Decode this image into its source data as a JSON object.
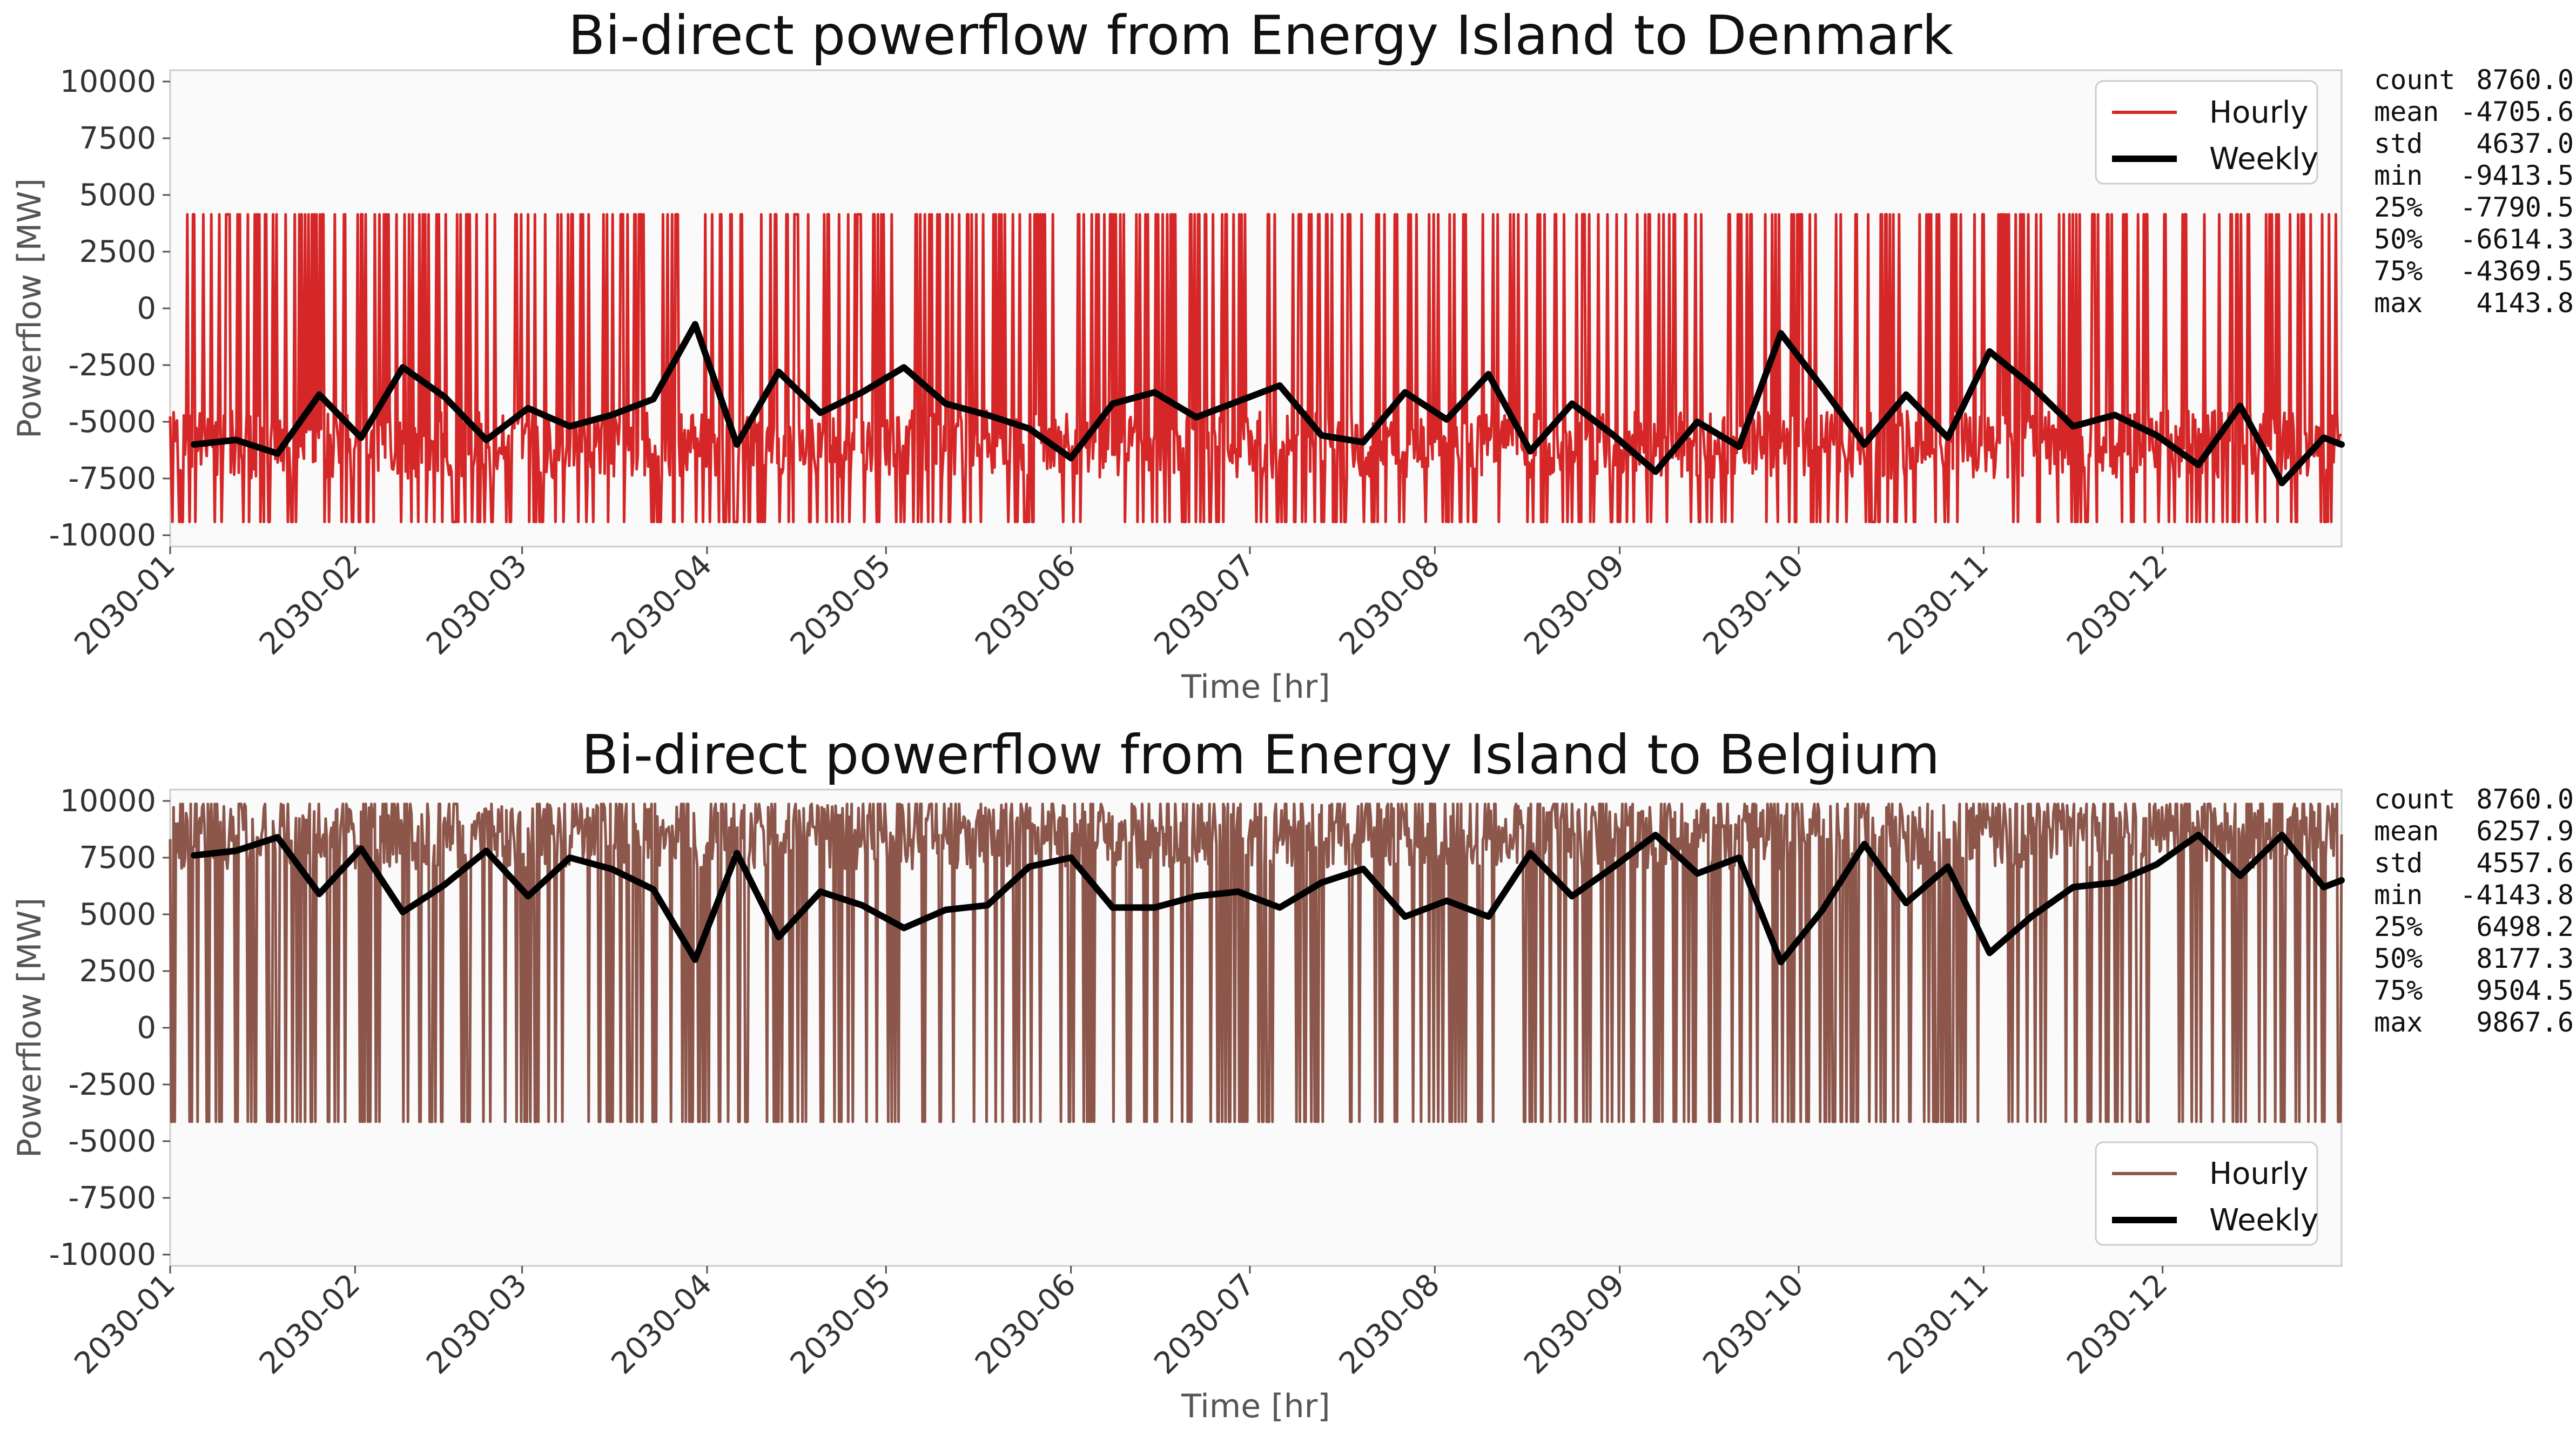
{
  "chart_data": [
    {
      "type": "line",
      "title": "Bi-direct powerflow from Energy Island to Denmark",
      "xlabel": "Time [hr]",
      "ylabel": "Powerflow [MW]",
      "ylim": [
        -10500,
        10500
      ],
      "yticks": [
        "10000",
        "7500",
        "5000",
        "2500",
        "0",
        "-2500",
        "-5000",
        "-7500",
        "-10000"
      ],
      "ytick_values": [
        10000,
        7500,
        5000,
        2500,
        0,
        -2500,
        -5000,
        -7500,
        -10000
      ],
      "xticks": [
        "2030-01",
        "2030-02",
        "2030-03",
        "2030-04",
        "2030-05",
        "2030-06",
        "2030-07",
        "2030-08",
        "2030-09",
        "2030-10",
        "2030-11",
        "2030-12"
      ],
      "xtick_days": [
        0,
        31,
        59,
        90,
        120,
        151,
        181,
        212,
        243,
        273,
        304,
        334
      ],
      "xlim_days": [
        0,
        364
      ],
      "legend": {
        "position": "top-right",
        "entries": [
          "Hourly",
          "Weekly"
        ]
      },
      "series": [
        {
          "name": "Hourly",
          "color": "#d62728",
          "description": "hourly values oscillate between about -9400 and 4140 MW",
          "min": -9413.5,
          "max": 4143.8,
          "typical_low": -7500,
          "typical_high": -4500,
          "seed": 7,
          "high_prob": 0.2
        },
        {
          "name": "Weekly",
          "color": "#000000",
          "x_days": [
            4,
            11,
            18,
            25,
            32,
            39,
            46,
            53,
            60,
            67,
            74,
            81,
            88,
            95,
            102,
            109,
            116,
            123,
            130,
            137,
            144,
            151,
            158,
            165,
            172,
            179,
            186,
            193,
            200,
            207,
            214,
            221,
            228,
            235,
            242,
            249,
            256,
            263,
            270,
            277,
            284,
            291,
            298,
            305,
            312,
            319,
            326,
            333,
            340,
            347,
            354,
            361,
            364
          ],
          "values": [
            -6000,
            -5800,
            -6400,
            -3800,
            -5700,
            -2600,
            -3900,
            -5800,
            -4400,
            -5200,
            -4700,
            -4000,
            -700,
            -6000,
            -2800,
            -4600,
            -3700,
            -2600,
            -4200,
            -4700,
            -5300,
            -6600,
            -4200,
            -3700,
            -4800,
            -4100,
            -3400,
            -5600,
            -5900,
            -3700,
            -4900,
            -2900,
            -6300,
            -4200,
            -5600,
            -7200,
            -5000,
            -6100,
            -1100,
            -3500,
            -6000,
            -3800,
            -5700,
            -1900,
            -3400,
            -5200,
            -4700,
            -5600,
            -6900,
            -4300,
            -7700,
            -5700,
            -6000
          ]
        }
      ],
      "stats": {
        "labels": [
          "count",
          "mean",
          "std",
          "min",
          "25%",
          "50%",
          "75%",
          "max"
        ],
        "values": [
          "8760.0",
          "-4705.6",
          "4637.0",
          "-9413.5",
          "-7790.5",
          "-6614.3",
          "-4369.5",
          "4143.8"
        ]
      }
    },
    {
      "type": "line",
      "title": "Bi-direct powerflow from Energy Island to Belgium",
      "xlabel": "Time [hr]",
      "ylabel": "Powerflow [MW]",
      "ylim": [
        -10500,
        10500
      ],
      "yticks": [
        "10000",
        "7500",
        "5000",
        "2500",
        "0",
        "-2500",
        "-5000",
        "-7500",
        "-10000"
      ],
      "ytick_values": [
        10000,
        7500,
        5000,
        2500,
        0,
        -2500,
        -5000,
        -7500,
        -10000
      ],
      "xticks": [
        "2030-01",
        "2030-02",
        "2030-03",
        "2030-04",
        "2030-05",
        "2030-06",
        "2030-07",
        "2030-08",
        "2030-09",
        "2030-10",
        "2030-11",
        "2030-12"
      ],
      "xtick_days": [
        0,
        31,
        59,
        90,
        120,
        151,
        181,
        212,
        243,
        273,
        304,
        334
      ],
      "xlim_days": [
        0,
        364
      ],
      "legend": {
        "position": "bottom-right",
        "entries": [
          "Hourly",
          "Weekly"
        ]
      },
      "series": [
        {
          "name": "Hourly",
          "color": "#8c564b",
          "description": "hourly values oscillate between about -4140 and 9870 MW",
          "min": -4143.8,
          "max": 9867.6,
          "typical_low": 7000,
          "typical_high": 9867.6,
          "seed": 13,
          "high_prob": 0.2
        },
        {
          "name": "Weekly",
          "color": "#000000",
          "x_days": [
            4,
            11,
            18,
            25,
            32,
            39,
            46,
            53,
            60,
            67,
            74,
            81,
            88,
            95,
            102,
            109,
            116,
            123,
            130,
            137,
            144,
            151,
            158,
            165,
            172,
            179,
            186,
            193,
            200,
            207,
            214,
            221,
            228,
            235,
            242,
            249,
            256,
            263,
            270,
            277,
            284,
            291,
            298,
            305,
            312,
            319,
            326,
            333,
            340,
            347,
            354,
            361,
            364
          ],
          "values": [
            7600,
            7800,
            8400,
            5900,
            7900,
            5100,
            6300,
            7800,
            5800,
            7500,
            7000,
            6100,
            3000,
            7700,
            4000,
            6000,
            5400,
            4400,
            5200,
            5400,
            7100,
            7500,
            5300,
            5300,
            5800,
            6000,
            5300,
            6400,
            7000,
            4900,
            5600,
            4900,
            7700,
            5800,
            7100,
            8500,
            6800,
            7500,
            2900,
            5200,
            8100,
            5500,
            7100,
            3300,
            4900,
            6200,
            6400,
            7200,
            8500,
            6700,
            8500,
            6200,
            6500
          ]
        }
      ],
      "stats": {
        "labels": [
          "count",
          "mean",
          "std",
          "min",
          "25%",
          "50%",
          "75%",
          "max"
        ],
        "values": [
          "8760.0",
          "6257.9",
          "4557.6",
          "-4143.8",
          "6498.2",
          "8177.3",
          "9504.5",
          "9867.6"
        ]
      }
    }
  ]
}
